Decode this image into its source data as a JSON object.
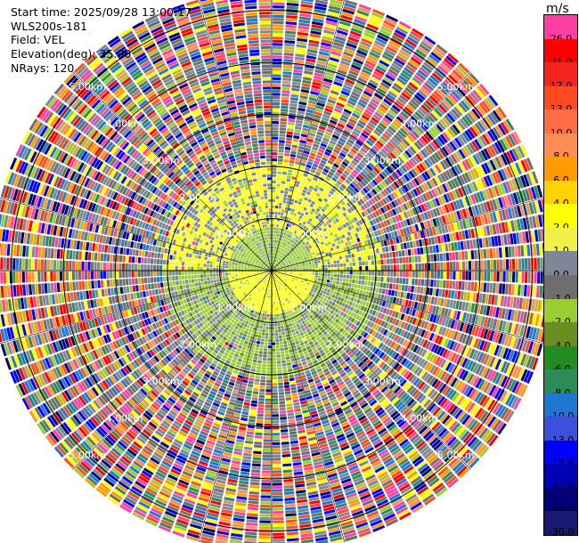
{
  "header": {
    "start_time": "Start time: 2025/09/28 13:00:17",
    "instrument": "WLS200s-181",
    "field": "Field: VEL",
    "elevation": "Elevation(deg): 35.00",
    "nrays": "NRays: 120"
  },
  "chart_data": {
    "type": "heatmap",
    "projection": "polar-ppi",
    "field": "VEL",
    "n_rays": 120,
    "range_unit": "km",
    "range_rings_km": [
      1.0,
      2.0,
      3.0,
      4.0,
      5.0
    ],
    "ring_labels": [
      "1.00km",
      "2.00km",
      "3.00km",
      "4.00km",
      "5.00km"
    ],
    "max_range_km": 5.4,
    "grid": true,
    "colorbar": {
      "unit": "m/s",
      "levels": [
        {
          "label": "26.0",
          "color": "#ff3fa5"
        },
        {
          "label": "21.0",
          "color": "#ff0000"
        },
        {
          "label": "17.0",
          "color": "#f4231e"
        },
        {
          "label": "13.0",
          "color": "#ff4b1e"
        },
        {
          "label": "10.0",
          "color": "#ff6e46"
        },
        {
          "label": "8.0",
          "color": "#ff8c55"
        },
        {
          "label": "6.0",
          "color": "#ff9b00"
        },
        {
          "label": "4.0",
          "color": "#ffd200"
        },
        {
          "label": "2.0",
          "color": "#ffff00"
        },
        {
          "label": "1.0",
          "color": "#f0f046"
        },
        {
          "label": "0.0",
          "color": "#7d8796"
        },
        {
          "label": "-1.0",
          "color": "#6e6e6e"
        },
        {
          "label": "-2.0",
          "color": "#9acd32"
        },
        {
          "label": "-4.0",
          "color": "#6b8e23"
        },
        {
          "label": "-6.0",
          "color": "#228b22"
        },
        {
          "label": "-8.0",
          "color": "#2e8b57"
        },
        {
          "label": "-10.0",
          "color": "#1e78d2"
        },
        {
          "label": "-13.0",
          "color": "#3c50dc"
        },
        {
          "label": "-17.0",
          "color": "#0000ff"
        },
        {
          "label": "-21.0",
          "color": "#0000b4"
        },
        {
          "label": "-26.0",
          "color": "#000078"
        },
        {
          "label": "-30.0",
          "color": "#191970"
        }
      ]
    },
    "pattern": {
      "inner_ring_km": 1.0,
      "near_positive": "#ffff00",
      "near_negative": "#9acd32",
      "mid_positive": "#ffff00",
      "mid_negative": "#9acd32",
      "far_colors": [
        "#ff3fa5",
        "#ff0000",
        "#ff4b1e",
        "#ff8c55",
        "#ff9b00",
        "#ffff00",
        "#7d8796",
        "#6e6e6e",
        "#9acd32",
        "#2e8b57",
        "#1e78d2",
        "#0000ff",
        "#000078"
      ]
    }
  }
}
